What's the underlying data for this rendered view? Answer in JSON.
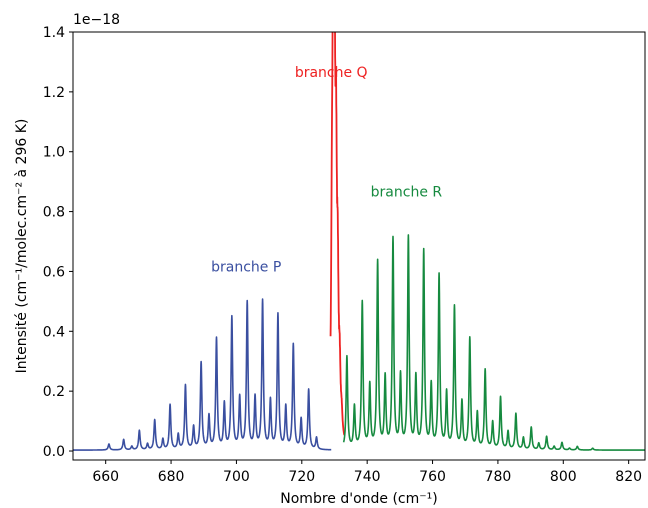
{
  "chart_data": {
    "type": "line",
    "title": "",
    "xlabel": "Nombre d'onde (cm⁻¹)",
    "ylabel": "Intensité (cm⁻¹/molec.cm⁻² à 296 K)",
    "y_multiplier_label": "1e−18",
    "xlim": [
      650,
      825
    ],
    "ylim": [
      -0.03,
      1.4
    ],
    "x_ticks": [
      660,
      680,
      700,
      720,
      740,
      760,
      780,
      800,
      820
    ],
    "x_tick_labels": [
      "660",
      "680",
      "700",
      "720",
      "740",
      "760",
      "780",
      "800",
      "820"
    ],
    "y_ticks": [
      0.0,
      0.2,
      0.4,
      0.6,
      0.8,
      1.0,
      1.2,
      1.4
    ],
    "y_tick_labels": [
      "0.0",
      "0.2",
      "0.4",
      "0.6",
      "0.8",
      "1.0",
      "1.2",
      "1.4"
    ],
    "grid": false,
    "series": [
      {
        "name": "branche P",
        "color": "#3a4fa0",
        "x": [
          661.0,
          665.5,
          670.3,
          675.0,
          679.7,
          684.4,
          689.2,
          693.9,
          698.6,
          703.3,
          708.0,
          712.7,
          717.4,
          722.1
        ],
        "peaks": [
          0.02,
          0.035,
          0.065,
          0.1,
          0.15,
          0.215,
          0.29,
          0.37,
          0.44,
          0.49,
          0.495,
          0.45,
          0.35,
          0.2
        ],
        "x_minor": [
          668.0,
          672.8,
          677.5,
          682.2,
          686.9,
          691.6,
          696.3,
          701.0,
          705.7,
          710.4,
          715.1,
          719.8,
          724.5
        ],
        "peaks_minor": [
          0.012,
          0.02,
          0.035,
          0.05,
          0.075,
          0.11,
          0.15,
          0.17,
          0.17,
          0.16,
          0.14,
          0.1,
          0.04
        ]
      },
      {
        "name": "branche Q",
        "color": "#ee2222",
        "x": [
          729.2,
          729.6,
          730.0,
          730.5,
          731.0,
          731.6,
          732.2
        ],
        "peaks": [
          0.5,
          1.19,
          1.0,
          0.72,
          0.42,
          0.18,
          0.06
        ]
      },
      {
        "name": "branche R",
        "color": "#168a3f",
        "x": [
          733.8,
          738.5,
          743.2,
          747.9,
          752.6,
          757.3,
          762.0,
          766.7,
          771.4,
          776.1,
          780.8,
          785.5,
          790.2,
          794.9,
          799.6,
          804.3,
          809.0
        ],
        "peaks": [
          0.31,
          0.49,
          0.625,
          0.7,
          0.705,
          0.66,
          0.58,
          0.475,
          0.37,
          0.265,
          0.175,
          0.12,
          0.075,
          0.045,
          0.025,
          0.012,
          0.006
        ],
        "x_minor": [
          736.1,
          740.8,
          745.5,
          750.2,
          754.9,
          759.6,
          764.3,
          769.0,
          773.7,
          778.4,
          783.1,
          787.8,
          792.5,
          797.2,
          801.9
        ],
        "peaks_minor": [
          0.14,
          0.21,
          0.235,
          0.24,
          0.235,
          0.21,
          0.185,
          0.155,
          0.12,
          0.09,
          0.06,
          0.04,
          0.022,
          0.012,
          0.006
        ]
      }
    ],
    "annotations": [
      {
        "text": "branche P",
        "x": 703,
        "y": 0.6,
        "color": "#3a4fa0"
      },
      {
        "text": "branche Q",
        "x": 729,
        "y": 1.25,
        "color": "#ee2222"
      },
      {
        "text": "branche R",
        "x": 752,
        "y": 0.85,
        "color": "#168a3f"
      }
    ]
  }
}
